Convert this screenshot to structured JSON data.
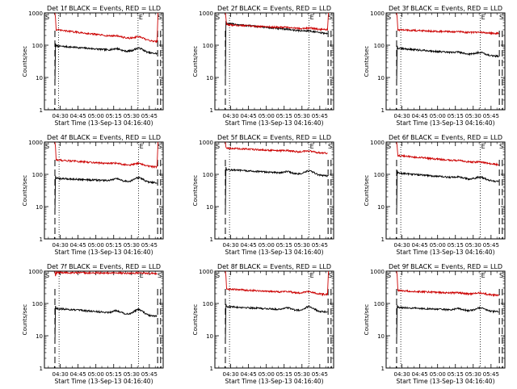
{
  "page": {
    "background": "#ffffff"
  },
  "common": {
    "xlabel": "Start Time (13-Sep-13 04:16:40)",
    "ylabel": "Counts/sec",
    "x_ticks": [
      "04:30",
      "04:45",
      "05:00",
      "05:15",
      "05:30",
      "05:45"
    ],
    "x_tick_minutes": [
      30,
      45,
      60,
      75,
      90,
      105
    ],
    "x_range_minutes": [
      16.67,
      116.67
    ],
    "y_ticks": [
      "1",
      "10",
      "100",
      "1000"
    ],
    "y_tick_values": [
      1,
      10,
      100,
      1000
    ],
    "yscale": "log",
    "ylim": [
      1,
      1000
    ],
    "series_colors": {
      "events": "#000000",
      "lld": "#cc0000"
    },
    "marker_labels": {
      "start": "S",
      "end": "E"
    }
  },
  "chart_data": [
    {
      "type": "line",
      "title": "Det 1f BLACK = Events, RED = LLD",
      "series": [
        {
          "key": "events",
          "start": 95,
          "end": 55,
          "bump": 20
        },
        {
          "key": "lld",
          "start": 300,
          "end": 130,
          "bump": 30,
          "spike_end": 1000
        }
      ],
      "markers": {
        "dashed_minutes": [
          25.5,
          112,
          114.5
        ],
        "dotted_minutes": [
          28.5,
          95.5
        ]
      }
    },
    {
      "type": "line",
      "title": "Det 2f BLACK = Events, RED = LLD",
      "series": [
        {
          "key": "events",
          "start": 470,
          "end": 230,
          "bump": 15
        },
        {
          "key": "lld",
          "start": 430,
          "end": 300,
          "bump": 20,
          "spike_end": 1000
        }
      ],
      "markers": {
        "dashed_minutes": [
          25.5,
          112,
          114.5
        ],
        "dotted_minutes": [
          29,
          96
        ]
      }
    },
    {
      "type": "line",
      "title": "Det 3f BLACK = Events, RED = LLD",
      "series": [
        {
          "key": "events",
          "start": 80,
          "end": 45,
          "bump": 10
        },
        {
          "key": "lld",
          "start": 300,
          "end": 230,
          "bump": 10
        }
      ],
      "markers": {
        "dashed_minutes": [
          25.5,
          112,
          114.5
        ],
        "dotted_minutes": [
          29,
          96
        ]
      }
    },
    {
      "type": "line",
      "title": "Det 4f BLACK = Events, RED = LLD",
      "series": [
        {
          "key": "events",
          "start": 75,
          "end": 55,
          "bump": 20
        },
        {
          "key": "lld",
          "start": 280,
          "end": 170,
          "bump": 30,
          "spike_end": 1000
        }
      ],
      "markers": {
        "dashed_minutes": [
          25.5,
          112,
          114.5
        ],
        "dotted_minutes": [
          29,
          96
        ]
      }
    },
    {
      "type": "line",
      "title": "Det 5f BLACK = Events, RED = LLD",
      "series": [
        {
          "key": "events",
          "start": 140,
          "end": 90,
          "bump": 30
        },
        {
          "key": "lld",
          "start": 650,
          "end": 450,
          "bump": 50
        }
      ],
      "markers": {
        "dashed_minutes": [
          25.5,
          112,
          114.5
        ],
        "dotted_minutes": [
          29,
          96
        ]
      }
    },
    {
      "type": "line",
      "title": "Det 6f BLACK = Events, RED = LLD",
      "series": [
        {
          "key": "events",
          "start": 110,
          "end": 60,
          "bump": 15
        },
        {
          "key": "lld",
          "start": 380,
          "end": 200,
          "bump": 20
        }
      ],
      "markers": {
        "dashed_minutes": [
          25.5,
          112,
          114.5
        ],
        "dotted_minutes": [
          29,
          96
        ]
      }
    },
    {
      "type": "line",
      "title": "Det 7f BLACK = Events, RED = LLD",
      "series": [
        {
          "key": "events",
          "start": 70,
          "end": 40,
          "bump": 20
        },
        {
          "key": "lld",
          "start": 900,
          "end": 850,
          "bump": 20
        }
      ],
      "markers": {
        "dashed_minutes": [
          25.5,
          112,
          114.5
        ],
        "dotted_minutes": [
          29,
          96
        ]
      }
    },
    {
      "type": "line",
      "title": "Det 8f BLACK = Events, RED = LLD",
      "series": [
        {
          "key": "events",
          "start": 80,
          "end": 55,
          "bump": 20
        },
        {
          "key": "lld",
          "start": 280,
          "end": 190,
          "bump": 30,
          "spike_end": 1000
        }
      ],
      "markers": {
        "dashed_minutes": [
          25.5,
          112,
          114.5
        ],
        "dotted_minutes": [
          29,
          96
        ]
      }
    },
    {
      "type": "line",
      "title": "Det 9f BLACK = Events, RED = LLD",
      "series": [
        {
          "key": "events",
          "start": 75,
          "end": 55,
          "bump": 15
        },
        {
          "key": "lld",
          "start": 250,
          "end": 180,
          "bump": 20
        }
      ],
      "markers": {
        "dashed_minutes": [
          25.5,
          112,
          114.5
        ],
        "dotted_minutes": [
          29,
          96
        ]
      }
    }
  ]
}
